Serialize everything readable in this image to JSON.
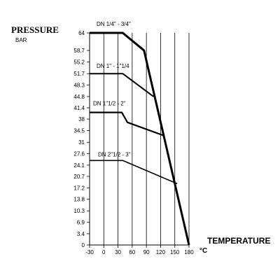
{
  "chart_data": {
    "type": "line",
    "ylabel": "PRESSURE",
    "yunit": "BAR",
    "xlabel": "TEMPERATURE",
    "xunit": "°C",
    "xlim": [
      -30,
      180
    ],
    "ylim": [
      0,
      64
    ],
    "xticks": [
      -30,
      0,
      30,
      60,
      90,
      120,
      150,
      180
    ],
    "xtick_labels": [
      "-30",
      "0",
      "30",
      "60",
      "90",
      "120",
      "150",
      "180"
    ],
    "yticks": [
      0,
      3.4,
      6.9,
      10.3,
      13.8,
      17.2,
      20.7,
      24.1,
      27.6,
      31,
      34.5,
      38,
      41.4,
      44.8,
      48.3,
      51.7,
      55.2,
      58.7,
      64
    ],
    "ytick_labels": [
      "0",
      "3.4",
      "6.9",
      "10.3",
      "13.8",
      "17.2",
      "20.7",
      "24.1",
      "27.6",
      "31",
      "34.5",
      "38",
      "41.4",
      "44.8",
      "48.3",
      "51.7",
      "55.2",
      "58.7",
      "64"
    ],
    "grid": "vertical",
    "series": [
      {
        "name": "DN 1/4\" - 3/4\"",
        "x": [
          -30,
          40,
          85,
          180
        ],
        "y": [
          64,
          64,
          58.7,
          0
        ]
      },
      {
        "name": "DN 1\" - 1\"1/4",
        "x": [
          -30,
          40,
          105
        ],
        "y": [
          51.7,
          51.7,
          44.8
        ]
      },
      {
        "name": "DN 1\"1/2 - 2\"",
        "x": [
          -30,
          38,
          50,
          127
        ],
        "y": [
          40,
          40,
          37,
          33
        ]
      },
      {
        "name": "DN 2\"1/2 - 3\"",
        "x": [
          -30,
          40,
          155
        ],
        "y": [
          25.5,
          25.5,
          18.5
        ]
      }
    ]
  }
}
